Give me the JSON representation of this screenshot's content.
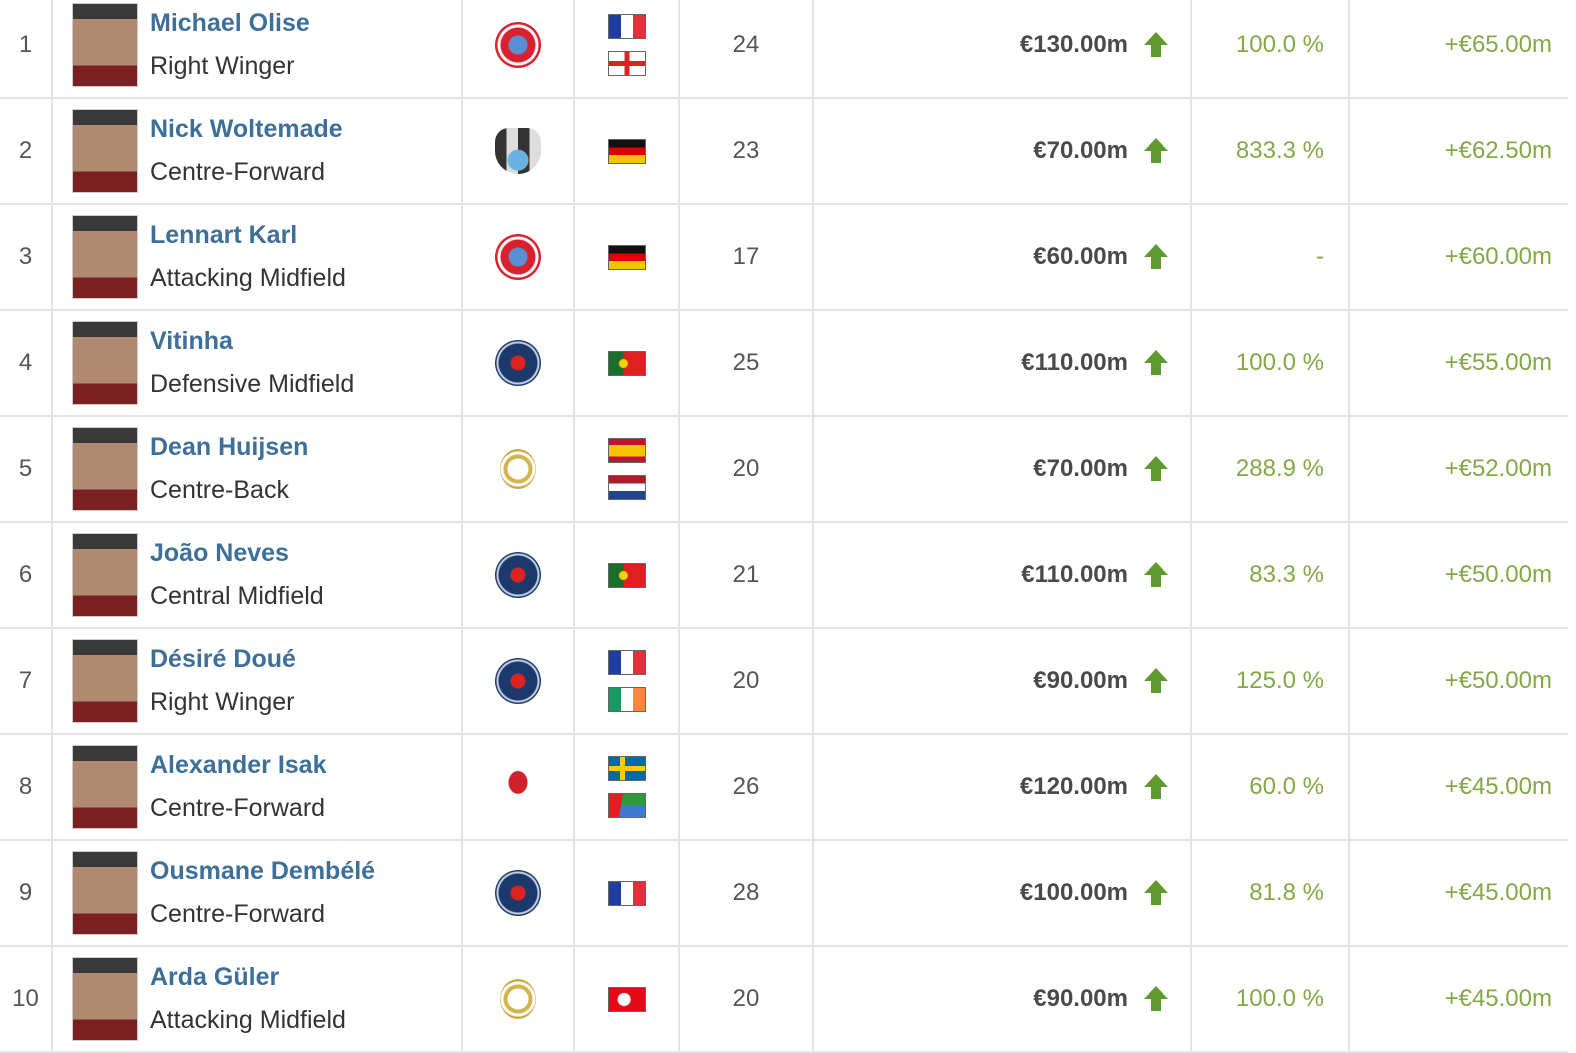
{
  "colors": {
    "name": "#3d6f98",
    "gain": "#84a846",
    "arrow": "#5f9a2e"
  },
  "players": [
    {
      "rank": "1",
      "name": "Michael Olise",
      "position": "Right Winger",
      "club": "bayern-munich-logo",
      "nationalities": [
        "france",
        "england"
      ],
      "age": "24",
      "value": "€130.00m",
      "trend": "up-arrow-icon",
      "change_pct": "100.0 %",
      "gain": "+€65.00m"
    },
    {
      "rank": "2",
      "name": "Nick Woltemade",
      "position": "Centre-Forward",
      "club": "newcastle-logo",
      "nationalities": [
        "germany"
      ],
      "age": "23",
      "value": "€70.00m",
      "trend": "up-arrow-icon",
      "change_pct": "833.3 %",
      "gain": "+€62.50m"
    },
    {
      "rank": "3",
      "name": "Lennart Karl",
      "position": "Attacking Midfield",
      "club": "bayern-munich-logo",
      "nationalities": [
        "germany"
      ],
      "age": "17",
      "value": "€60.00m",
      "trend": "up-arrow-icon",
      "change_pct": "-",
      "gain": "+€60.00m"
    },
    {
      "rank": "4",
      "name": "Vitinha",
      "position": "Defensive Midfield",
      "club": "psg-logo",
      "nationalities": [
        "portugal"
      ],
      "age": "25",
      "value": "€110.00m",
      "trend": "up-arrow-icon",
      "change_pct": "100.0 %",
      "gain": "+€55.00m"
    },
    {
      "rank": "5",
      "name": "Dean Huijsen",
      "position": "Centre-Back",
      "club": "real-madrid-logo",
      "nationalities": [
        "spain",
        "netherlands"
      ],
      "age": "20",
      "value": "€70.00m",
      "trend": "up-arrow-icon",
      "change_pct": "288.9 %",
      "gain": "+€52.00m"
    },
    {
      "rank": "6",
      "name": "João Neves",
      "position": "Central Midfield",
      "club": "psg-logo",
      "nationalities": [
        "portugal"
      ],
      "age": "21",
      "value": "€110.00m",
      "trend": "up-arrow-icon",
      "change_pct": "83.3 %",
      "gain": "+€50.00m"
    },
    {
      "rank": "7",
      "name": "Désiré Doué",
      "position": "Right Winger",
      "club": "psg-logo",
      "nationalities": [
        "france",
        "ireland"
      ],
      "age": "20",
      "value": "€90.00m",
      "trend": "up-arrow-icon",
      "change_pct": "125.0 %",
      "gain": "+€50.00m"
    },
    {
      "rank": "8",
      "name": "Alexander Isak",
      "position": "Centre-Forward",
      "club": "liverpool-logo",
      "nationalities": [
        "sweden",
        "eritrea"
      ],
      "age": "26",
      "value": "€120.00m",
      "trend": "up-arrow-icon",
      "change_pct": "60.0 %",
      "gain": "+€45.00m"
    },
    {
      "rank": "9",
      "name": "Ousmane Dembélé",
      "position": "Centre-Forward",
      "club": "psg-logo",
      "nationalities": [
        "france"
      ],
      "age": "28",
      "value": "€100.00m",
      "trend": "up-arrow-icon",
      "change_pct": "81.8 %",
      "gain": "+€45.00m"
    },
    {
      "rank": "10",
      "name": "Arda Güler",
      "position": "Attacking Midfield",
      "club": "real-madrid-logo",
      "nationalities": [
        "turkey"
      ],
      "age": "20",
      "value": "€90.00m",
      "trend": "up-arrow-icon",
      "change_pct": "100.0 %",
      "gain": "+€45.00m"
    }
  ]
}
